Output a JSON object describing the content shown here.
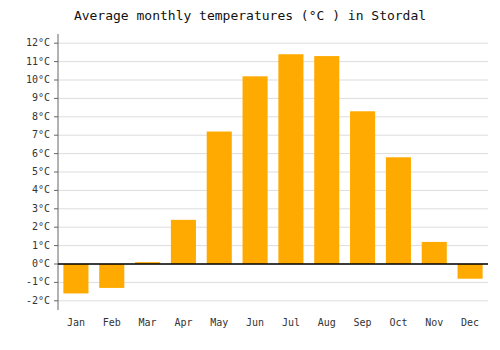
{
  "chart_data": {
    "type": "bar",
    "title": "Average monthly temperatures (°C ) in Stordal",
    "categories": [
      "Jan",
      "Feb",
      "Mar",
      "Apr",
      "May",
      "Jun",
      "Jul",
      "Aug",
      "Sep",
      "Oct",
      "Nov",
      "Dec"
    ],
    "values": [
      -1.6,
      -1.3,
      0.1,
      2.4,
      7.2,
      10.2,
      11.4,
      11.3,
      8.3,
      5.8,
      1.2,
      -0.8
    ],
    "color": "#FFAA00",
    "ylim": [
      -2.5,
      12.5
    ],
    "yticks": [
      {
        "value": -2,
        "label": "-2°C"
      },
      {
        "value": -1,
        "label": "-1°C"
      },
      {
        "value": 0,
        "label": "0°C"
      },
      {
        "value": 1,
        "label": "1°C"
      },
      {
        "value": 2,
        "label": "2°C"
      },
      {
        "value": 3,
        "label": "3°C"
      },
      {
        "value": 4,
        "label": "4°C"
      },
      {
        "value": 5,
        "label": "5°C"
      },
      {
        "value": 6,
        "label": "6°C"
      },
      {
        "value": 7,
        "label": "7°C"
      },
      {
        "value": 8,
        "label": "8°C"
      },
      {
        "value": 9,
        "label": "9°C"
      },
      {
        "value": 10,
        "label": "10°C"
      },
      {
        "value": 11,
        "label": "11°C"
      },
      {
        "value": 12,
        "label": "12°C"
      }
    ],
    "grid": true
  }
}
